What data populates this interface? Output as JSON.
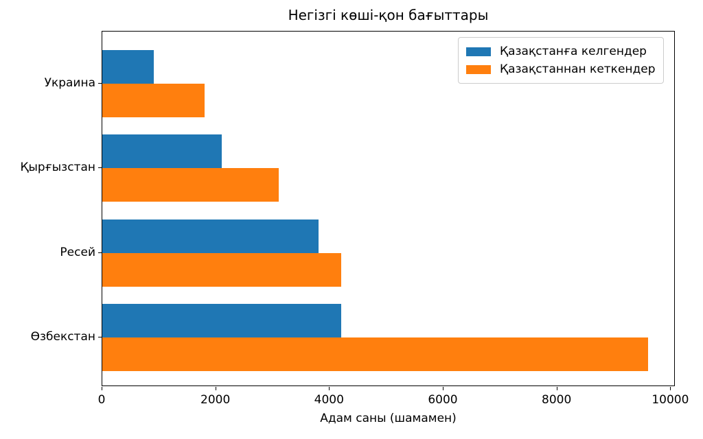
{
  "chart_data": {
    "type": "bar",
    "orientation": "horizontal",
    "title": "Негізгі көші-қон бағыттары",
    "xlabel": "Адам саны (шамамен)",
    "ylabel": "",
    "categories": [
      "Украина",
      "Қырғызстан",
      "Ресей",
      "Өзбекстан"
    ],
    "series": [
      {
        "name": "Қазақстанға келгендер",
        "color": "#1f77b4",
        "values": [
          900,
          2100,
          3800,
          4200
        ]
      },
      {
        "name": "Қазақстаннан кеткендер",
        "color": "#ff7f0e",
        "values": [
          1800,
          3100,
          4200,
          9600
        ]
      }
    ],
    "xlim": [
      0,
      10080
    ],
    "xticks": [
      0,
      2000,
      4000,
      6000,
      8000,
      10000
    ],
    "xtick_labels": [
      "0",
      "2000",
      "4000",
      "6000",
      "8000",
      "10000"
    ],
    "legend_position": "upper right",
    "grid": false,
    "background": "#ffffff",
    "spine_color": "#000000",
    "text_color": "#000000"
  }
}
